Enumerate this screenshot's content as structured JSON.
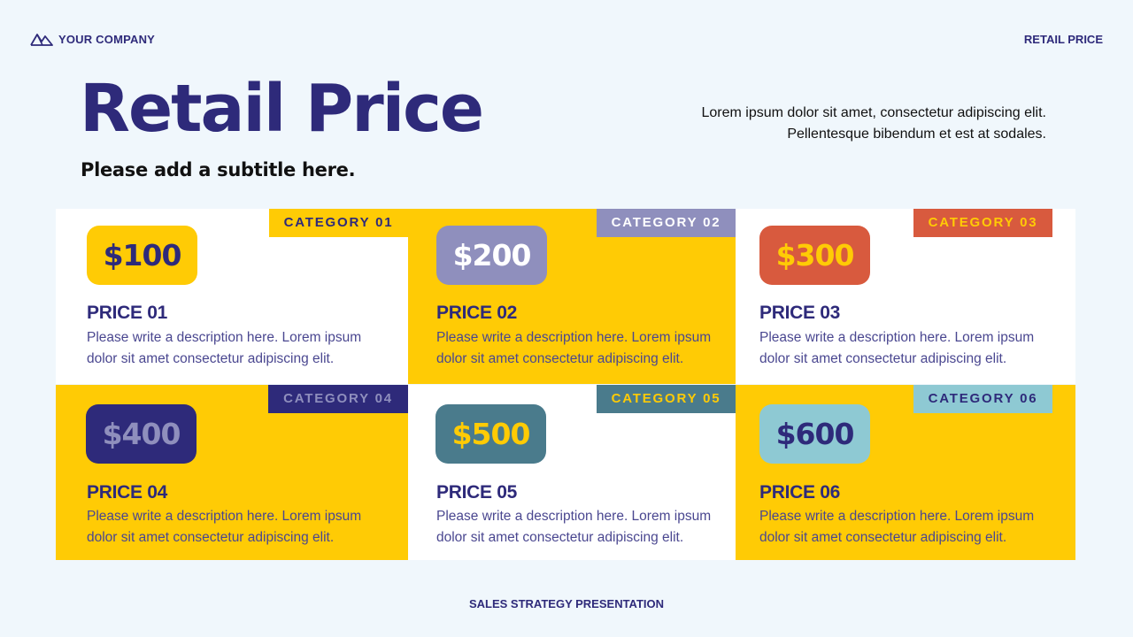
{
  "header": {
    "brand": "YOUR COMPANY",
    "brand_icon": "mountain-logo-icon",
    "top_right": "RETAIL PRICE"
  },
  "title": "Retail Price",
  "subtitle": "Please add a subtitle here.",
  "intro": {
    "line1": "Lorem ipsum dolor sit amet, consectetur adipiscing elit.",
    "line2": "Pellentesque bibendum et est at sodales."
  },
  "colors": {
    "navy": "#2e2a7a",
    "yellow": "#ffcb05",
    "white": "#ffffff",
    "lavender": "#8f8fbd",
    "orange": "#d85a3e",
    "teal": "#4a7b8c",
    "lightblue": "#8ec9d3",
    "background": "#f0f7fc"
  },
  "cards": [
    {
      "category": "CATEGORY 01",
      "price": "$100",
      "name": "PRICE 01",
      "description": "Please write a description here. Lorem ipsum dolor sit amet consectetur adipiscing elit."
    },
    {
      "category": "CATEGORY 02",
      "price": "$200",
      "name": "PRICE 02",
      "description": "Please write a description here. Lorem ipsum dolor sit amet consectetur adipiscing elit."
    },
    {
      "category": "CATEGORY 03",
      "price": "$300",
      "name": "PRICE 03",
      "description": "Please write a description here. Lorem ipsum dolor sit amet consectetur adipiscing elit."
    },
    {
      "category": "CATEGORY 04",
      "price": "$400",
      "name": "PRICE 04",
      "description": "Please write a description here. Lorem ipsum dolor sit amet consectetur adipiscing elit."
    },
    {
      "category": "CATEGORY 05",
      "price": "$500",
      "name": "PRICE 05",
      "description": "Please write a description here. Lorem ipsum dolor sit amet consectetur adipiscing elit."
    },
    {
      "category": "CATEGORY 06",
      "price": "$600",
      "name": "PRICE 06",
      "description": "Please write a description here. Lorem ipsum dolor sit amet consectetur adipiscing elit."
    }
  ],
  "footer": "SALES STRATEGY PRESENTATION"
}
